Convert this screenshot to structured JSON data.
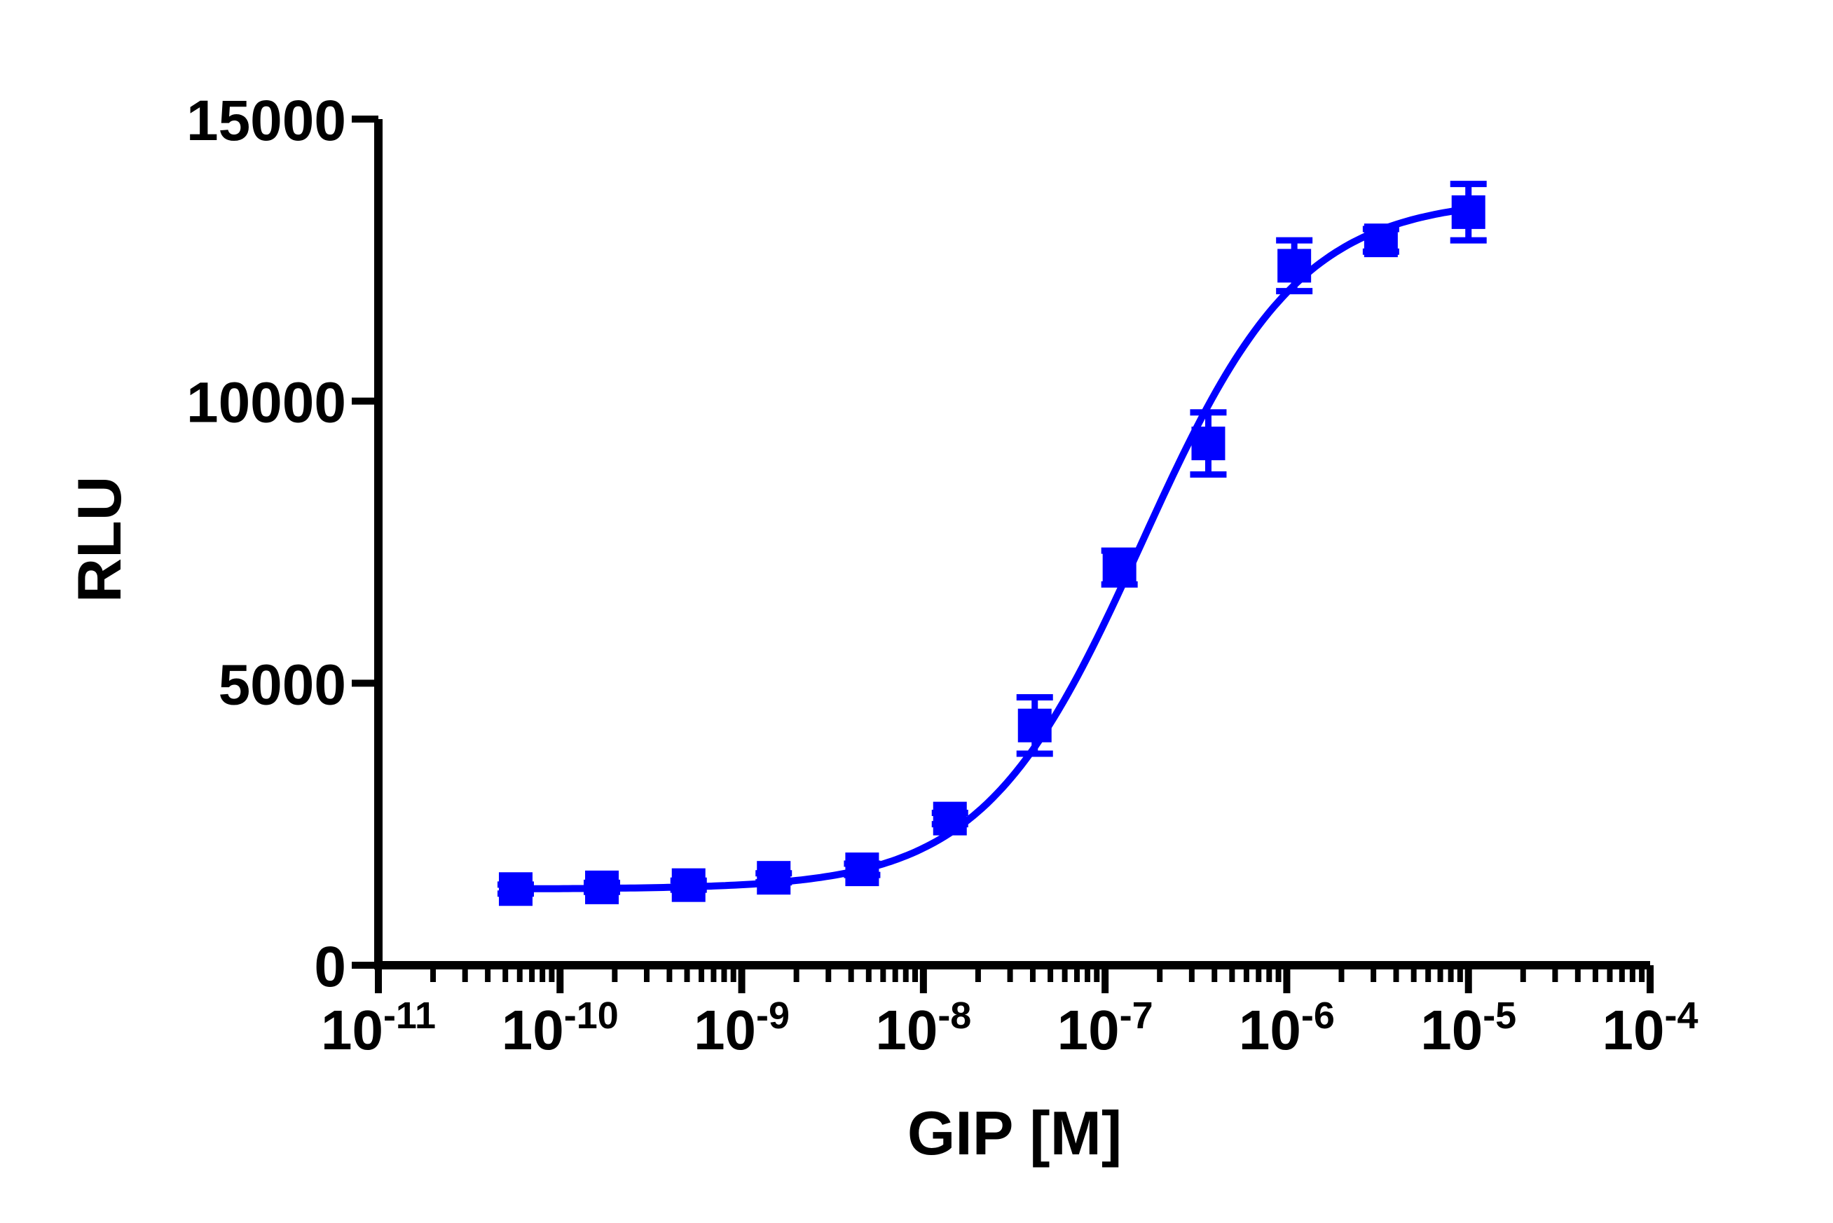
{
  "chart_data": {
    "type": "scatter",
    "xlabel": "GIP [M]",
    "ylabel": "RLU",
    "x_scale": "log",
    "xlim": [
      1e-11,
      0.0001
    ],
    "ylim": [
      0,
      15000
    ],
    "grid": false,
    "legend": "none",
    "x_ticks": [
      {
        "base": "10",
        "exp": "-11",
        "value": 1e-11
      },
      {
        "base": "10",
        "exp": "-10",
        "value": 1e-10
      },
      {
        "base": "10",
        "exp": "-9",
        "value": 1e-09
      },
      {
        "base": "10",
        "exp": "-8",
        "value": 1e-08
      },
      {
        "base": "10",
        "exp": "-7",
        "value": 1e-07
      },
      {
        "base": "10",
        "exp": "-6",
        "value": 1e-06
      },
      {
        "base": "10",
        "exp": "-5",
        "value": 1e-05
      },
      {
        "base": "10",
        "exp": "-4",
        "value": 0.0001
      }
    ],
    "y_ticks": [
      {
        "label": "0",
        "value": 0
      },
      {
        "label": "5000",
        "value": 5000
      },
      {
        "label": "10000",
        "value": 10000
      },
      {
        "label": "15000",
        "value": 15000
      }
    ],
    "series": [
      {
        "color": "#0000ff",
        "marker": "square",
        "points": [
          {
            "x": 5.7e-11,
            "y": 1350,
            "err": 80
          },
          {
            "x": 1.7e-10,
            "y": 1380,
            "err": 80
          },
          {
            "x": 5.1e-10,
            "y": 1420,
            "err": 80
          },
          {
            "x": 1.5e-09,
            "y": 1550,
            "err": 80
          },
          {
            "x": 4.6e-09,
            "y": 1700,
            "err": 100
          },
          {
            "x": 1.4e-08,
            "y": 2600,
            "err": 100
          },
          {
            "x": 4.1e-08,
            "y": 4250,
            "err": 500
          },
          {
            "x": 1.2e-07,
            "y": 7050,
            "err": 300
          },
          {
            "x": 3.7e-07,
            "y": 9250,
            "err": 550
          },
          {
            "x": 1.1e-06,
            "y": 12400,
            "err": 450
          },
          {
            "x": 3.3e-06,
            "y": 12850,
            "err": 200
          },
          {
            "x": 1e-05,
            "y": 13350,
            "err": 500
          }
        ],
        "fit": {
          "model": "sigmoidal dose-response",
          "bottom": 1350,
          "top": 13600,
          "logEC50": -6.8
        }
      }
    ]
  }
}
